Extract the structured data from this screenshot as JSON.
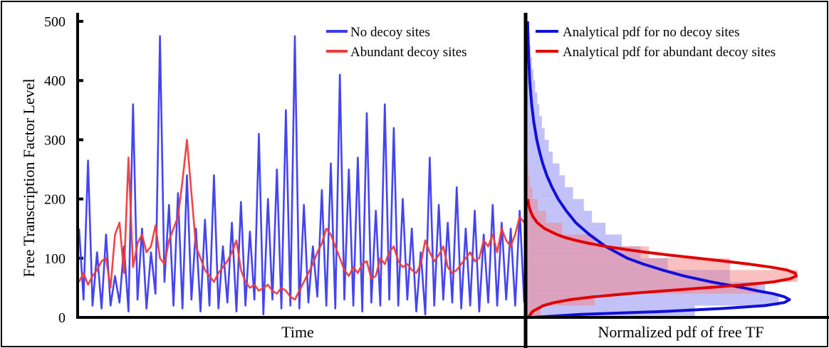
{
  "chart_data": [
    {
      "type": "line",
      "xlabel": "Time",
      "ylabel": "Free Transcription Factor Level",
      "ylim": [
        0,
        500
      ],
      "yticks": [
        0,
        100,
        200,
        300,
        400,
        500
      ],
      "legend": {
        "placement": "top-right"
      },
      "series": [
        {
          "name": "No decoy sites",
          "color": "#3b3bef",
          "values": [
            150,
            30,
            265,
            20,
            110,
            15,
            140,
            20,
            70,
            25,
            120,
            10,
            360,
            30,
            150,
            15,
            110,
            40,
            475,
            60,
            190,
            20,
            210,
            15,
            240,
            30,
            150,
            10,
            165,
            20,
            240,
            15,
            120,
            25,
            160,
            10,
            195,
            20,
            145,
            30,
            310,
            5,
            200,
            30,
            250,
            15,
            350,
            20,
            475,
            15,
            190,
            25,
            120,
            35,
            215,
            20,
            260,
            15,
            410,
            30,
            250,
            20,
            270,
            10,
            345,
            25,
            180,
            20,
            360,
            30,
            320,
            20,
            200,
            30,
            150,
            10,
            110,
            5,
            270,
            20,
            190,
            30,
            160,
            25,
            220,
            15,
            150,
            20,
            180,
            10,
            140,
            25,
            190,
            20,
            160,
            30,
            150,
            20,
            180,
            25
          ]
        },
        {
          "name": "Abundant decoy sites",
          "color": "#ef3b3b",
          "values": [
            60,
            75,
            55,
            70,
            80,
            95,
            100,
            50,
            140,
            160,
            75,
            270,
            85,
            125,
            140,
            110,
            120,
            155,
            100,
            90,
            130,
            150,
            170,
            230,
            300,
            210,
            120,
            100,
            80,
            70,
            60,
            75,
            85,
            95,
            110,
            130,
            80,
            60,
            50,
            55,
            45,
            50,
            55,
            45,
            40,
            50,
            45,
            35,
            30,
            45,
            60,
            75,
            90,
            110,
            125,
            150,
            140,
            120,
            100,
            80,
            70,
            85,
            75,
            90,
            95,
            65,
            70,
            100,
            90,
            110,
            120,
            95,
            85,
            90,
            80,
            75,
            90,
            130,
            110,
            95,
            105,
            120,
            85,
            75,
            80,
            90,
            100,
            110,
            95,
            100,
            130,
            120,
            140,
            110,
            150,
            130,
            120,
            140,
            170,
            160
          ]
        }
      ]
    },
    {
      "type": "area",
      "xlabel": "Normalized pdf of free TF",
      "ylim": [
        0,
        500
      ],
      "legend": {
        "placement": "top-right"
      },
      "bins": [
        0,
        20,
        40,
        60,
        80,
        100,
        120,
        140,
        160,
        180,
        200,
        220,
        240,
        260,
        280,
        300,
        320,
        340,
        360,
        380,
        400,
        420,
        440,
        460,
        480
      ],
      "histogram_no_decoy": [
        0.62,
        0.93,
        0.88,
        0.75,
        0.52,
        0.42,
        0.35,
        0.29,
        0.24,
        0.21,
        0.17,
        0.14,
        0.12,
        0.095,
        0.08,
        0.065,
        0.055,
        0.045,
        0.038,
        0.03,
        0.024,
        0.018,
        0.013,
        0.01,
        0.006
      ],
      "histogram_abundant_decoy": [
        0.05,
        0.25,
        0.85,
        1.0,
        0.75,
        0.45,
        0.25,
        0.13,
        0.07,
        0.04,
        0.02,
        0.01,
        0.005,
        0,
        0,
        0,
        0,
        0,
        0,
        0,
        0,
        0,
        0,
        0,
        0
      ],
      "series": [
        {
          "name": "Analytical pdf for no decoy sites",
          "color": "#1010d8",
          "y": [
            0,
            5,
            10,
            15,
            20,
            25,
            30,
            35,
            40,
            45,
            50,
            60,
            70,
            80,
            90,
            100,
            120,
            140,
            160,
            180,
            200,
            220,
            240,
            260,
            280,
            300,
            330,
            360,
            400,
            450,
            500
          ],
          "x": [
            0.02,
            0.2,
            0.5,
            0.72,
            0.88,
            0.95,
            0.97,
            0.95,
            0.91,
            0.85,
            0.8,
            0.68,
            0.58,
            0.5,
            0.43,
            0.37,
            0.29,
            0.23,
            0.18,
            0.145,
            0.115,
            0.092,
            0.073,
            0.058,
            0.046,
            0.036,
            0.025,
            0.017,
            0.01,
            0.005,
            0.002
          ]
        },
        {
          "name": "Analytical pdf for abundant decoy sites",
          "color": "#e00000",
          "y": [
            0,
            10,
            20,
            25,
            30,
            35,
            40,
            45,
            50,
            55,
            60,
            65,
            70,
            75,
            80,
            85,
            90,
            95,
            100,
            105,
            110,
            115,
            120,
            125,
            130,
            135,
            140,
            150,
            160,
            170,
            180,
            190,
            200
          ],
          "x": [
            0.005,
            0.02,
            0.06,
            0.1,
            0.16,
            0.25,
            0.37,
            0.51,
            0.66,
            0.8,
            0.91,
            0.97,
            0.995,
            0.99,
            0.96,
            0.9,
            0.82,
            0.73,
            0.63,
            0.53,
            0.44,
            0.36,
            0.29,
            0.23,
            0.18,
            0.14,
            0.11,
            0.065,
            0.038,
            0.022,
            0.012,
            0.006,
            0.003
          ]
        }
      ]
    }
  ]
}
